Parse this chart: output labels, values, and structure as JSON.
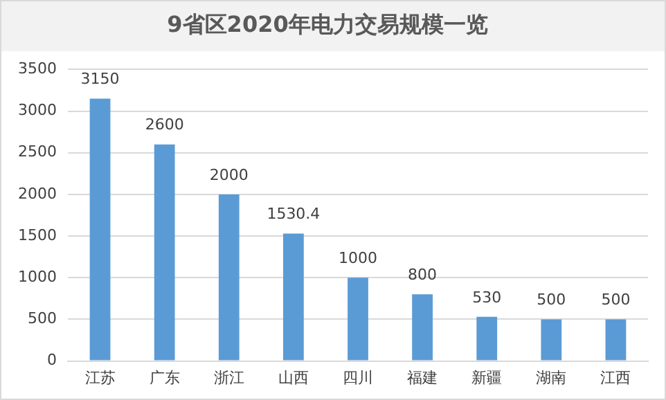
{
  "chart_data": {
    "type": "bar",
    "title": "9省区2020年电力交易规模一览",
    "categories": [
      "江苏",
      "广东",
      "浙江",
      "山西",
      "四川",
      "福建",
      "新疆",
      "湖南",
      "江西"
    ],
    "values": [
      3150,
      2600,
      2000,
      1530.4,
      1000,
      800,
      530,
      500,
      500
    ],
    "color": "#5b9bd5",
    "ylim": [
      0,
      3500
    ],
    "yticks": [
      0,
      500,
      1000,
      1500,
      2000,
      2500,
      3000,
      3500
    ],
    "grid": "y",
    "data_labels": true,
    "legend": false
  }
}
